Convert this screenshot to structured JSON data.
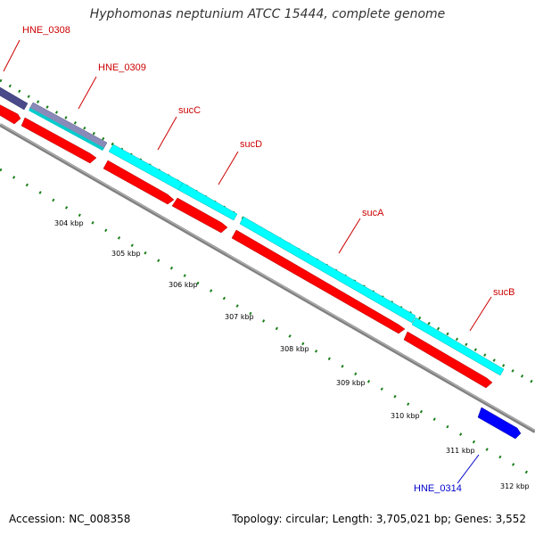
{
  "title": "Hyphomonas neptunium ATCC 15444, complete genome",
  "footer": {
    "accession": "Accession: NC_008358",
    "summary": "Topology: circular; Length: 3,705,021 bp; Genes: 3,552"
  },
  "colors": {
    "backbone": "#808080",
    "tick": "#1a7f1a",
    "cds": "#ff0000",
    "gene_forward": "#00ffff",
    "label_red": "#cc0000",
    "label_blue": "#0000cc",
    "gene_dark": "#4a4a8a",
    "gene_blue": "#0000ff"
  },
  "ticks": [
    "304 kbp",
    "305 kbp",
    "306 kbp",
    "307 kbp",
    "308 kbp",
    "309 kbp",
    "310 kbp",
    "311 kbp",
    "312 kbp"
  ],
  "genes": [
    {
      "label": "HNE_0308",
      "label_color": "#cc0000"
    },
    {
      "label": "HNE_0309",
      "label_color": "#cc0000"
    },
    {
      "label": "sucC",
      "label_color": "#cc0000"
    },
    {
      "label": "sucD",
      "label_color": "#cc0000"
    },
    {
      "label": "sucA",
      "label_color": "#cc0000"
    },
    {
      "label": "sucB",
      "label_color": "#cc0000"
    },
    {
      "label": "HNE_0314",
      "label_color": "#0000cc"
    }
  ]
}
